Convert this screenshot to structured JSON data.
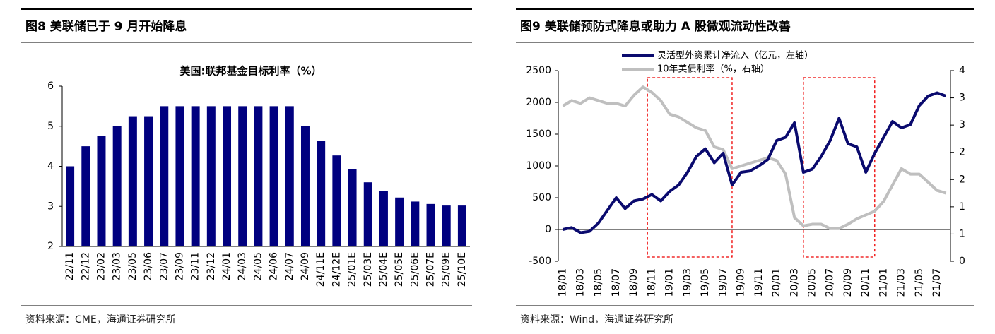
{
  "chart_data": [
    {
      "type": "bar",
      "figure_title": "图8  美联储已于 9 月开始降息",
      "title": "美国:联邦基金目标利率（%）",
      "source": "资料来源：CME，海通证券研究所",
      "categories": [
        "22/11",
        "22/12",
        "23/02",
        "23/03",
        "23/05",
        "23/06",
        "23/07",
        "23/09",
        "23/11",
        "23/12",
        "24/01",
        "24/03",
        "24/05",
        "24/06",
        "24/07",
        "24/09",
        "24/11E",
        "24/12E",
        "25/01E",
        "25/03E",
        "25/04E",
        "25/05E",
        "25/06E",
        "25/07E",
        "25/09E",
        "25/10E"
      ],
      "values": [
        4,
        4.5,
        4.75,
        5,
        5.25,
        5.25,
        5.5,
        5.5,
        5.5,
        5.5,
        5.5,
        5.5,
        5.5,
        5.5,
        5.5,
        5,
        4.63,
        4.27,
        3.93,
        3.6,
        3.38,
        3.22,
        3.12,
        3.06,
        3.02,
        3.02
      ],
      "color": "#00007f",
      "ylim": [
        2,
        6
      ],
      "yticks": [
        2,
        3,
        4,
        5,
        6
      ]
    },
    {
      "type": "line",
      "figure_title": "图9  美联储预防式降息或助力 A 股微观流动性改善",
      "source": "资料来源：Wind，海通证券研究所",
      "categories": [
        "18/01",
        null,
        "18/03",
        null,
        "18/05",
        null,
        "18/07",
        null,
        "18/09",
        null,
        "18/11",
        null,
        "19/01",
        null,
        "19/03",
        null,
        "19/05",
        null,
        "19/07",
        null,
        "19/09",
        null,
        "19/11",
        null,
        "20/01",
        null,
        "20/03",
        null,
        "20/05",
        null,
        "20/07",
        null,
        "20/09",
        null,
        "20/11",
        null,
        "21/01",
        null,
        "21/03",
        null,
        "21/05",
        null,
        "21/07",
        null
      ],
      "series": [
        {
          "name": "灵活型外资累计净流入（亿元，左轴）",
          "color": "#0a0a6e",
          "values": [
            0,
            30,
            -50,
            -30,
            100,
            300,
            500,
            330,
            450,
            480,
            550,
            450,
            600,
            700,
            900,
            1150,
            1270,
            1050,
            1200,
            700,
            900,
            920,
            1000,
            1100,
            1400,
            1450,
            1680,
            900,
            950,
            1150,
            1400,
            1750,
            1350,
            1300,
            900,
            1200,
            1450,
            1700,
            1600,
            1650,
            1950,
            2100,
            2150,
            2100
          ]
        },
        {
          "name": "10年美债利率（%，右轴）",
          "color": "#bfbfbf",
          "axis": "y2",
          "values": [
            2.85,
            2.95,
            2.9,
            3.0,
            2.95,
            2.9,
            2.9,
            2.85,
            3.05,
            3.2,
            3.1,
            2.95,
            2.7,
            2.65,
            2.55,
            2.45,
            2.4,
            2.1,
            2.05,
            1.7,
            1.75,
            1.8,
            1.85,
            1.9,
            1.85,
            1.6,
            0.8,
            0.65,
            0.68,
            0.68,
            0.6,
            0.6,
            0.68,
            0.78,
            0.85,
            0.92,
            1.1,
            1.4,
            1.7,
            1.6,
            1.6,
            1.45,
            1.3,
            1.25
          ]
        }
      ],
      "ylim": [
        -500,
        2500
      ],
      "yticks": [
        -500,
        0,
        500,
        1000,
        1500,
        2000,
        2500
      ],
      "y2lim": [
        0,
        3.5
      ],
      "y2ticks": [
        0,
        {
          "value": 0.5,
          "label": "1"
        },
        1,
        {
          "value": 1.5,
          "label": "2"
        },
        2,
        {
          "value": 2.5,
          "label": "3"
        },
        3,
        {
          "value": 3.5,
          "label": "4"
        }
      ]
    }
  ]
}
